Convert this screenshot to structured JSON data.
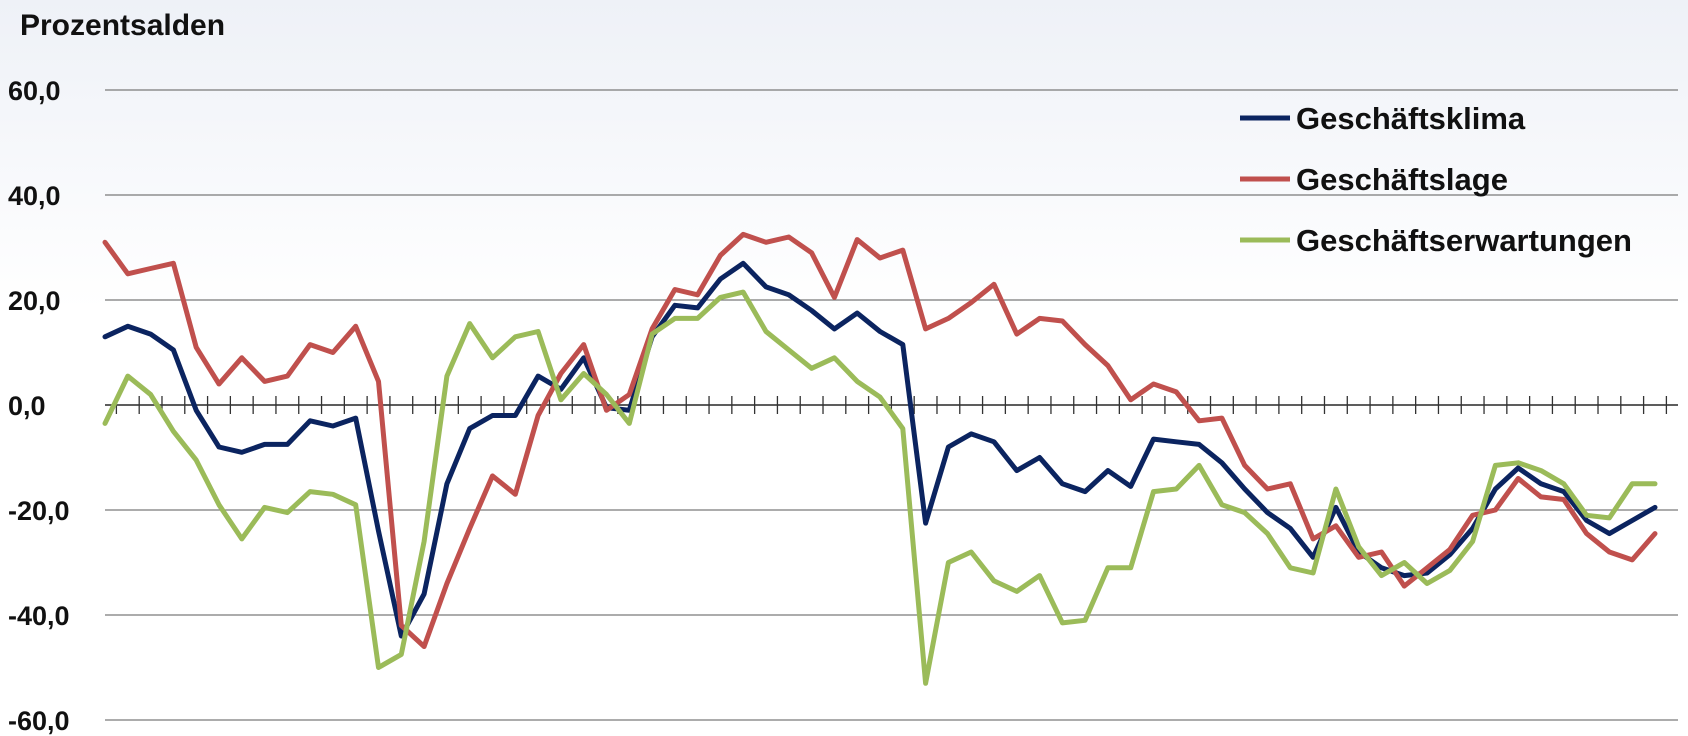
{
  "chart_data": {
    "type": "line",
    "ylabel": "Prozentsalden",
    "yticks": [
      "60,0",
      "40,0",
      "20,0",
      "0,0",
      "-20,0",
      "-40,0",
      "-60,0"
    ],
    "ylim": [
      -60,
      60
    ],
    "grid": true,
    "legend_position": "top-right",
    "series": [
      {
        "name": "Geschäftsklima",
        "color": "#0b2460",
        "values": [
          13,
          15,
          13.5,
          10.5,
          -1,
          -8,
          -9,
          -7.5,
          -7.5,
          -3,
          -4,
          -2.5,
          -24,
          -44,
          -36,
          -15,
          -4.5,
          -2,
          -2,
          5.5,
          3,
          9,
          -0.5,
          -1,
          13,
          19,
          18.5,
          24,
          27,
          22.5,
          21,
          18,
          14.5,
          17.5,
          14,
          11.5,
          -22.5,
          -8,
          -5.5,
          -7,
          -12.5,
          -10,
          -15,
          -16.5,
          -12.5,
          -15.5,
          -6.5,
          -7,
          -7.5,
          -11,
          -16,
          -20.5,
          -23.5,
          -29,
          -19.5,
          -28,
          -31,
          -32.5,
          -32,
          -28.5,
          -23.5,
          -16,
          -12,
          -15,
          -16.5,
          -22,
          -24.5,
          -22,
          -19.5
        ]
      },
      {
        "name": "Geschäftslage",
        "color": "#c0504d",
        "values": [
          31,
          25,
          26,
          27,
          11,
          4,
          9,
          4.5,
          5.5,
          11.5,
          10,
          15,
          4.5,
          -42,
          -46,
          -34,
          -23.5,
          -13.5,
          -17,
          -2,
          6,
          11.5,
          -1,
          2,
          14.5,
          22,
          21,
          28.5,
          32.5,
          31,
          32,
          29,
          20.5,
          31.5,
          28,
          29.5,
          14.5,
          16.5,
          19.5,
          23,
          13.5,
          16.5,
          16,
          11.5,
          7.5,
          1,
          4,
          2.5,
          -3,
          -2.5,
          -11.5,
          -16,
          -15,
          -25.5,
          -23,
          -29,
          -28,
          -34.5,
          -31,
          -27.5,
          -21,
          -20,
          -14,
          -17.5,
          -18,
          -24.5,
          -28,
          -29.5,
          -24.5
        ]
      },
      {
        "name": "Geschäftserwartungen",
        "color": "#9bbb59",
        "values": [
          -3.5,
          5.5,
          2,
          -5,
          -10.5,
          -19,
          -25.5,
          -19.5,
          -20.5,
          -16.5,
          -17,
          -19,
          -50,
          -47.5,
          -26,
          5.5,
          15.5,
          9,
          13,
          14,
          1,
          6,
          2,
          -3.5,
          13.5,
          16.5,
          16.5,
          20.5,
          21.5,
          14,
          10.5,
          7,
          9,
          4.5,
          1.5,
          -4.5,
          -53,
          -30,
          -28,
          -33.5,
          -35.5,
          -32.5,
          -41.5,
          -41,
          -31,
          -31,
          -16.5,
          -16,
          -11.5,
          -19,
          -20.5,
          -24.5,
          -31,
          -32,
          -16,
          -27,
          -32.5,
          -30,
          -34,
          -31.5,
          -26,
          -11.5,
          -11,
          -12.5,
          -15,
          -21,
          -21.5,
          -15,
          -15
        ]
      }
    ]
  }
}
